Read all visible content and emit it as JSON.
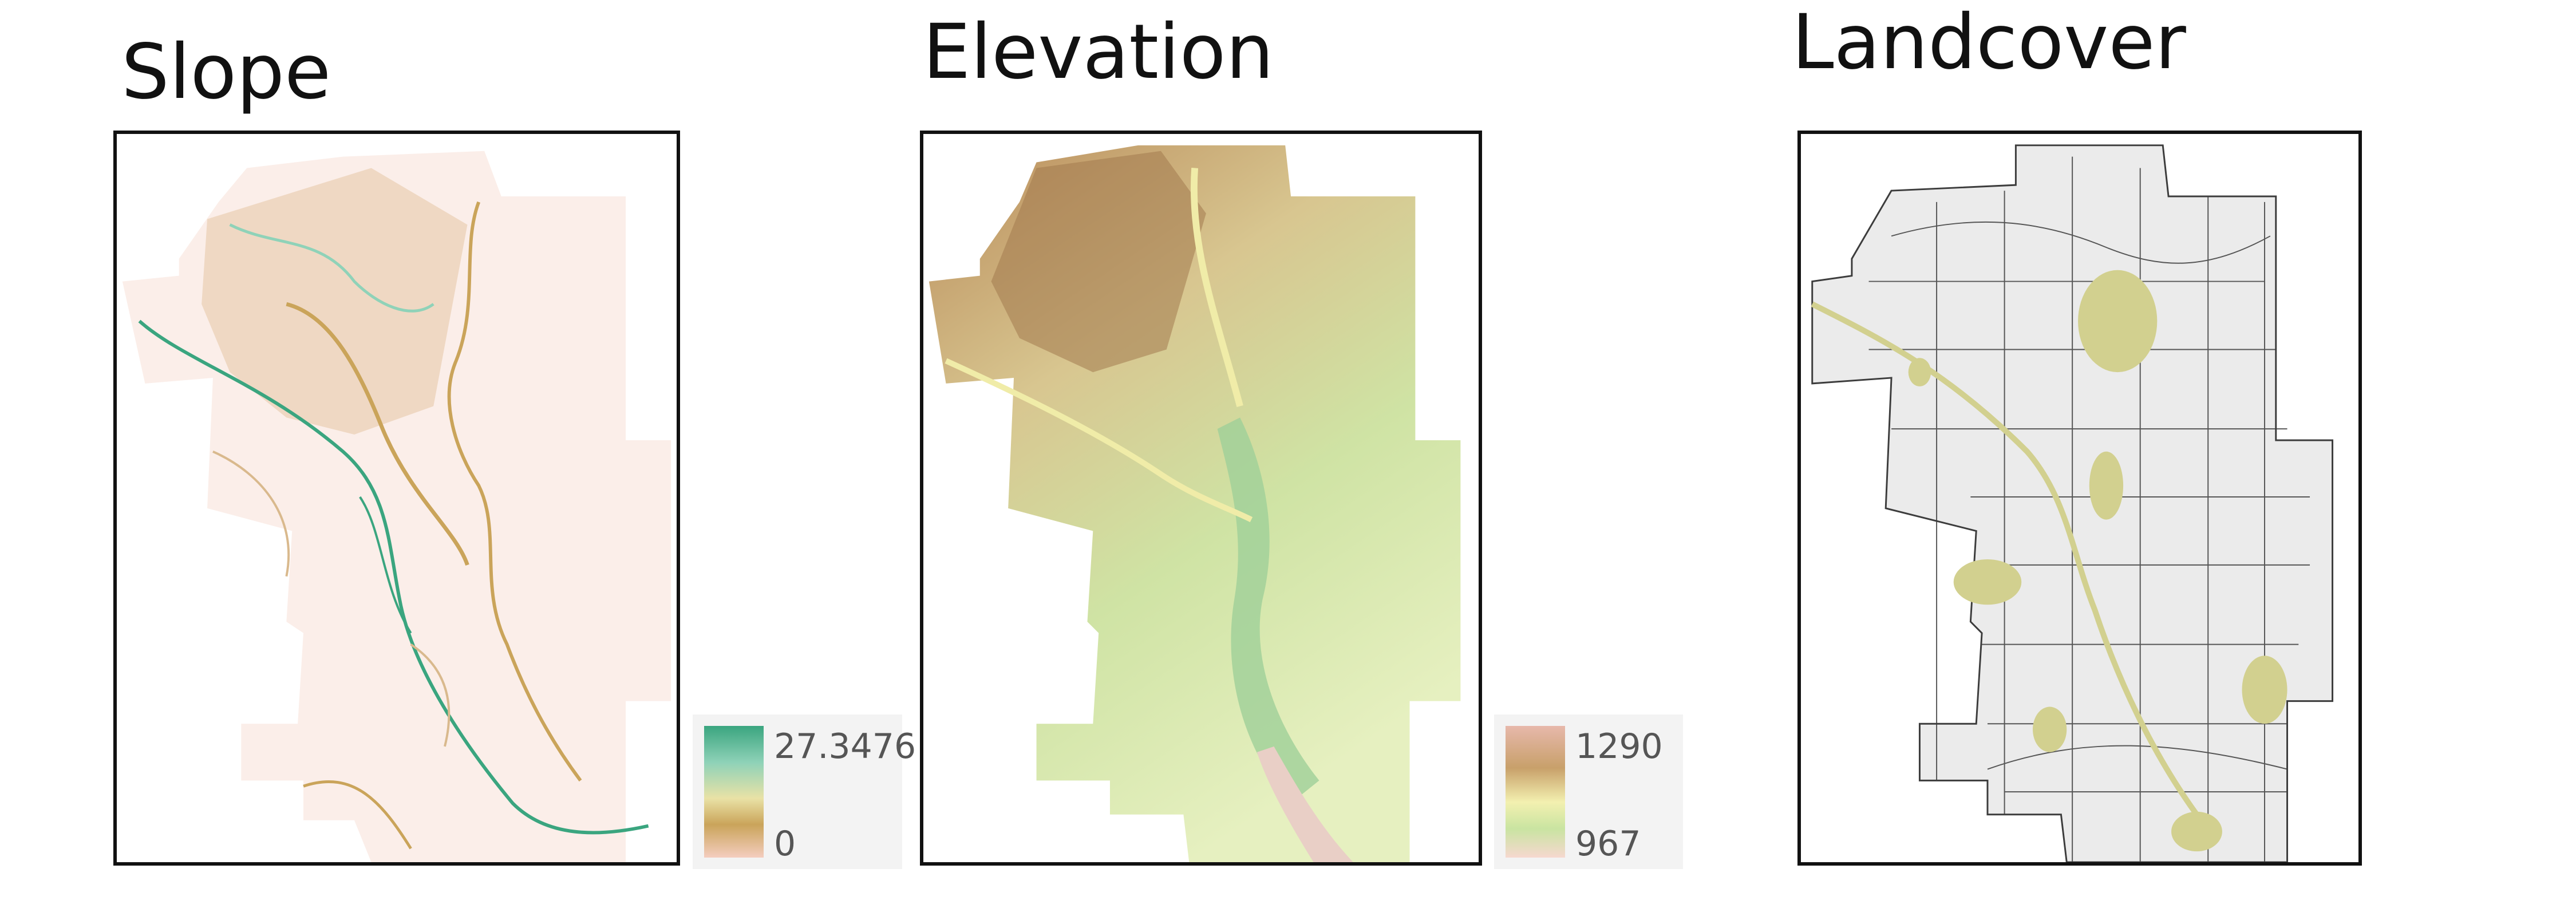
{
  "panels": [
    {
      "title": "Slope",
      "legend": {
        "max": "27.3476",
        "min": "0",
        "colors": [
          "#3aa57f",
          "#8fd2b8",
          "#e9e2a6",
          "#caa45a",
          "#f4cdbf"
        ]
      }
    },
    {
      "title": "Elevation",
      "legend": {
        "max": "1290",
        "min": "967",
        "colors": [
          "#e7b8ab",
          "#c8a06a",
          "#f3f0b0",
          "#c9e4a1",
          "#f6d8cf"
        ]
      }
    },
    {
      "title": "Landcover",
      "colors": {
        "polygon": "#ebebeb",
        "outline": "#3c3c3c",
        "vegetation": "#d2d08f"
      }
    }
  ]
}
